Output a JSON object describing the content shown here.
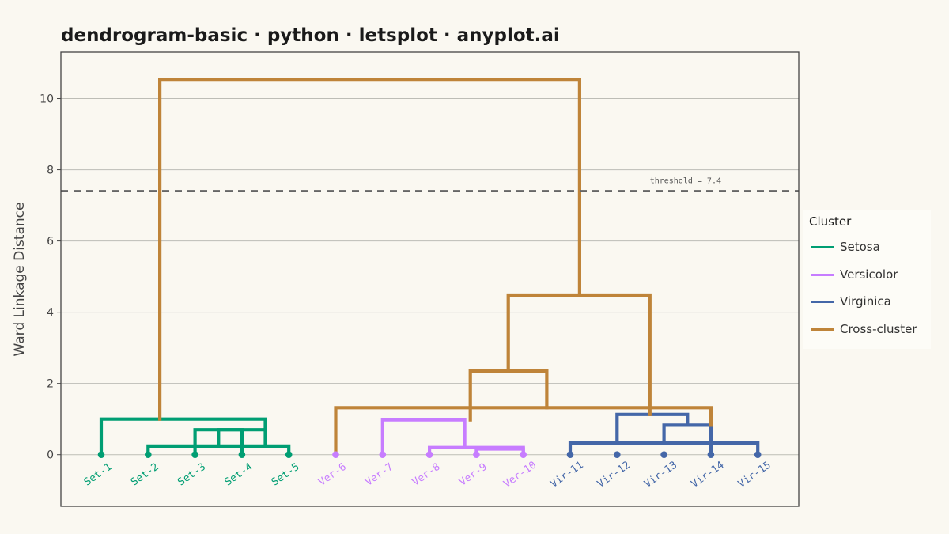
{
  "title": "dendrogram-basic · python · letsplot · anyplot.ai",
  "chart_data": {
    "type": "dendrogram",
    "title": "dendrogram-basic · python · letsplot · anyplot.ai",
    "ylabel": "Ward Linkage Distance",
    "xlabel": "",
    "ylim": [
      -1.45,
      11.3
    ],
    "yticks": [
      0,
      2,
      4,
      6,
      8,
      10
    ],
    "grid": true,
    "legend_position": "right",
    "threshold": {
      "value": 7.4,
      "label": "threshold = 7.4",
      "color": "#666666"
    },
    "leaves": [
      {
        "label": "Set-1",
        "cluster": "Setosa"
      },
      {
        "label": "Set-2",
        "cluster": "Setosa"
      },
      {
        "label": "Set-3",
        "cluster": "Setosa"
      },
      {
        "label": "Set-4",
        "cluster": "Setosa"
      },
      {
        "label": "Set-5",
        "cluster": "Setosa"
      },
      {
        "label": "Ver-6",
        "cluster": "Versicolor"
      },
      {
        "label": "Ver-7",
        "cluster": "Versicolor"
      },
      {
        "label": "Ver-8",
        "cluster": "Versicolor"
      },
      {
        "label": "Ver-9",
        "cluster": "Versicolor"
      },
      {
        "label": "Ver-10",
        "cluster": "Versicolor"
      },
      {
        "label": "Vir-11",
        "cluster": "Virginica"
      },
      {
        "label": "Vir-12",
        "cluster": "Virginica"
      },
      {
        "label": "Vir-13",
        "cluster": "Virginica"
      },
      {
        "label": "Vir-14",
        "cluster": "Virginica"
      },
      {
        "label": "Vir-15",
        "cluster": "Virginica"
      }
    ],
    "links": [
      {
        "cluster": "Setosa",
        "x": [
          2,
          2,
          5,
          5
        ],
        "y": [
          0,
          0.24,
          0.24,
          0
        ]
      },
      {
        "cluster": "Setosa",
        "x": [
          3,
          3,
          4,
          4
        ],
        "y": [
          0,
          0.7,
          0.7,
          0
        ]
      },
      {
        "cluster": "Setosa",
        "x": [
          3.5,
          3.5,
          4.5,
          4.5
        ],
        "y": [
          0.24,
          0.7,
          0.7,
          0.24
        ]
      },
      {
        "cluster": "Setosa",
        "x": [
          1,
          1,
          4.5,
          4.5
        ],
        "y": [
          0,
          1.0,
          1.0,
          0.7
        ]
      },
      {
        "cluster": "Versicolor",
        "x": [
          8,
          8,
          10,
          10
        ],
        "y": [
          0,
          0.2,
          0.2,
          0
        ]
      },
      {
        "cluster": "Versicolor",
        "x": [
          9,
          9,
          10,
          10
        ],
        "y": [
          0,
          0.16,
          0.16,
          0
        ]
      },
      {
        "cluster": "Versicolor",
        "x": [
          7,
          7,
          8.75,
          8.75
        ],
        "y": [
          0,
          0.98,
          0.98,
          0.2
        ]
      },
      {
        "cluster": "Virginica",
        "x": [
          11,
          11,
          15,
          15
        ],
        "y": [
          0,
          0.33,
          0.33,
          0
        ]
      },
      {
        "cluster": "Virginica",
        "x": [
          13,
          13,
          14,
          14
        ],
        "y": [
          0.33,
          0.83,
          0.83,
          0
        ]
      },
      {
        "cluster": "Virginica",
        "x": [
          12,
          12,
          13.5,
          13.5
        ],
        "y": [
          0.33,
          1.13,
          1.13,
          0.83
        ]
      },
      {
        "cluster": "Cross-cluster",
        "x": [
          6,
          6,
          14,
          14
        ],
        "y": [
          0,
          1.32,
          1.32,
          0.83
        ]
      },
      {
        "cluster": "Cross-cluster",
        "x": [
          8.87,
          8.87,
          10.5,
          10.5
        ],
        "y": [
          0.98,
          2.35,
          2.35,
          1.32
        ]
      },
      {
        "cluster": "Cross-cluster",
        "x": [
          9.68,
          9.68,
          12.7,
          12.7
        ],
        "y": [
          2.35,
          4.48,
          4.48,
          1.13
        ]
      },
      {
        "cluster": "Cross-cluster",
        "x": [
          2.25,
          2.25,
          11.2,
          11.2
        ],
        "y": [
          1.0,
          10.52,
          10.52,
          4.48
        ]
      }
    ],
    "series": [
      {
        "name": "Setosa",
        "color": "#009E73"
      },
      {
        "name": "Versicolor",
        "color": "#C77DFF"
      },
      {
        "name": "Virginica",
        "color": "#4467A8"
      },
      {
        "name": "Cross-cluster",
        "color": "#BF8439"
      }
    ]
  },
  "legend": {
    "title": "Cluster",
    "items": [
      {
        "label": "Setosa",
        "color": "#009E73"
      },
      {
        "label": "Versicolor",
        "color": "#C77DFF"
      },
      {
        "label": "Virginica",
        "color": "#4467A8"
      },
      {
        "label": "Cross-cluster",
        "color": "#BF8439"
      }
    ]
  }
}
